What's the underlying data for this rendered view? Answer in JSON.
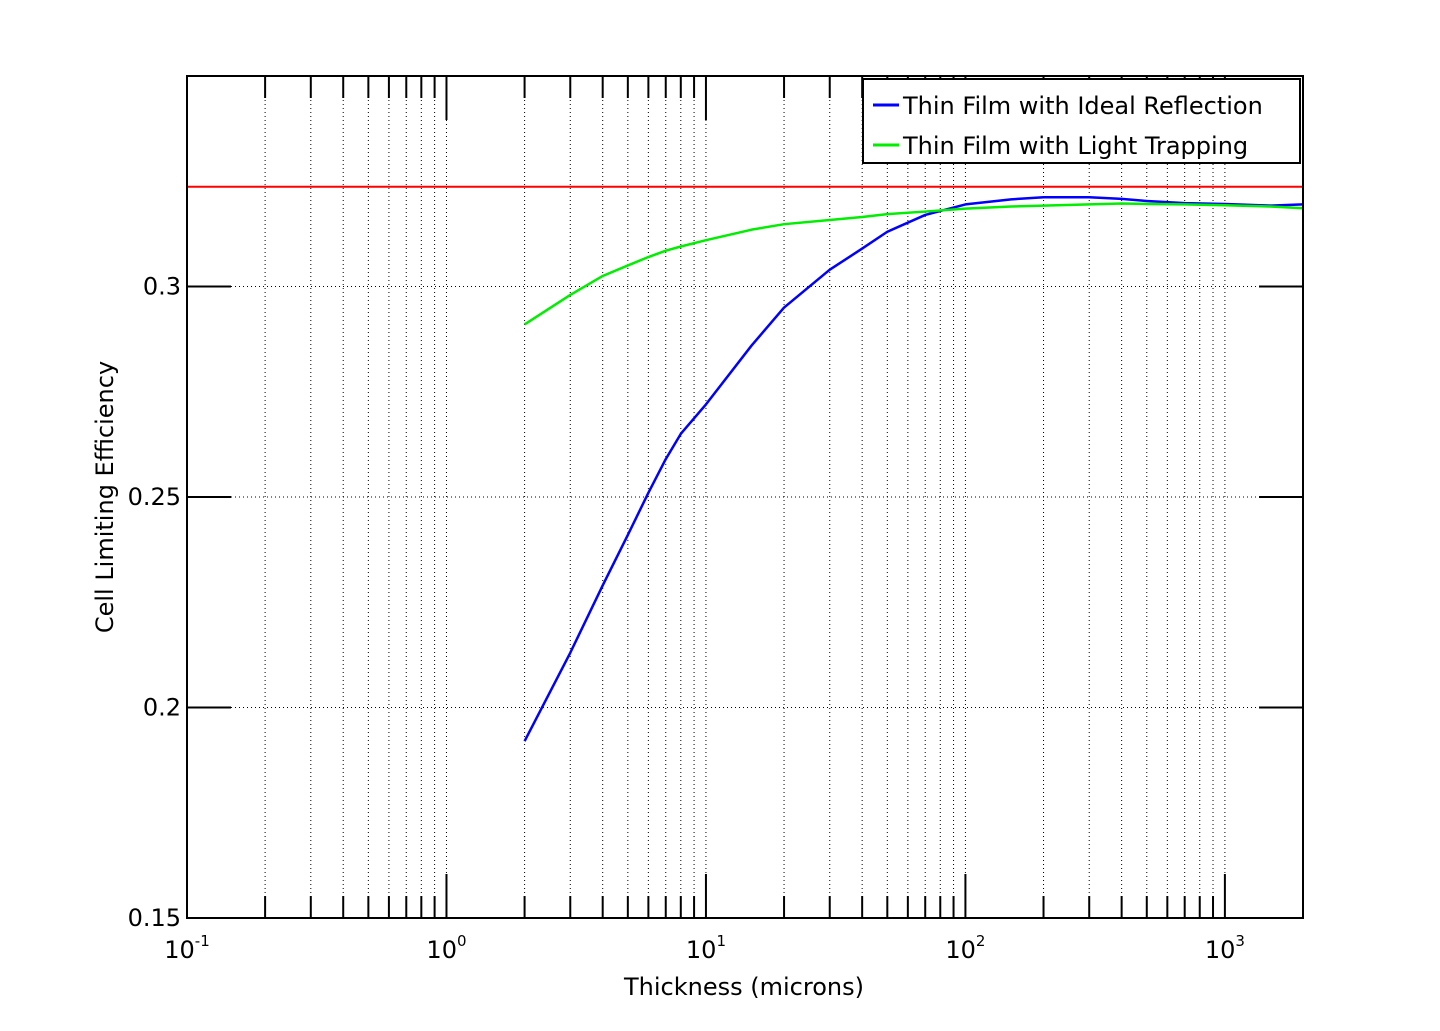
{
  "chart_data": {
    "type": "line",
    "title": "",
    "xlabel": "Thickness (microns)",
    "ylabel": "Cell Limiting Efficiency",
    "xscale": "log",
    "xlim": [
      0.1,
      2000
    ],
    "ylim": [
      0.15,
      0.35
    ],
    "x_ticks": [
      {
        "base": "10",
        "exp": "-1",
        "value": 0.1
      },
      {
        "base": "10",
        "exp": "0",
        "value": 1
      },
      {
        "base": "10",
        "exp": "1",
        "value": 10
      },
      {
        "base": "10",
        "exp": "2",
        "value": 100
      },
      {
        "base": "10",
        "exp": "3",
        "value": 1000
      }
    ],
    "y_ticks": [
      {
        "label": "0.15",
        "value": 0.15
      },
      {
        "label": "0.2",
        "value": 0.2
      },
      {
        "label": "0.25",
        "value": 0.25
      },
      {
        "label": "0.3",
        "value": 0.3
      }
    ],
    "grid": true,
    "legend_position": "top-right",
    "series": [
      {
        "name": "Thin Film with Ideal Reflection",
        "color": "#0000ff",
        "x": [
          2,
          3,
          4,
          5,
          6,
          7,
          8,
          10,
          15,
          20,
          30,
          40,
          50,
          70,
          100,
          150,
          200,
          300,
          400,
          500,
          700,
          1000,
          1500,
          2000
        ],
        "y": [
          0.192,
          0.213,
          0.229,
          0.241,
          0.251,
          0.259,
          0.265,
          0.272,
          0.286,
          0.295,
          0.304,
          0.309,
          0.313,
          0.317,
          0.3195,
          0.3207,
          0.3212,
          0.3212,
          0.3208,
          0.3203,
          0.3198,
          0.3196,
          0.3192,
          0.3195
        ]
      },
      {
        "name": "Thin Film with Light Trapping",
        "color": "#00ee00",
        "x": [
          2,
          3,
          4,
          5,
          6,
          7,
          8,
          10,
          15,
          20,
          30,
          40,
          50,
          70,
          100,
          150,
          200,
          300,
          400,
          500,
          700,
          1000,
          1500,
          2000
        ],
        "y": [
          0.291,
          0.298,
          0.3025,
          0.305,
          0.307,
          0.3085,
          0.3095,
          0.311,
          0.3135,
          0.3148,
          0.3158,
          0.3165,
          0.3172,
          0.3178,
          0.3185,
          0.319,
          0.3192,
          0.3195,
          0.3197,
          0.3196,
          0.3195,
          0.3193,
          0.319,
          0.3186
        ]
      }
    ],
    "reference_lines": [
      {
        "y": 0.3237,
        "color": "#ff0000"
      }
    ]
  }
}
